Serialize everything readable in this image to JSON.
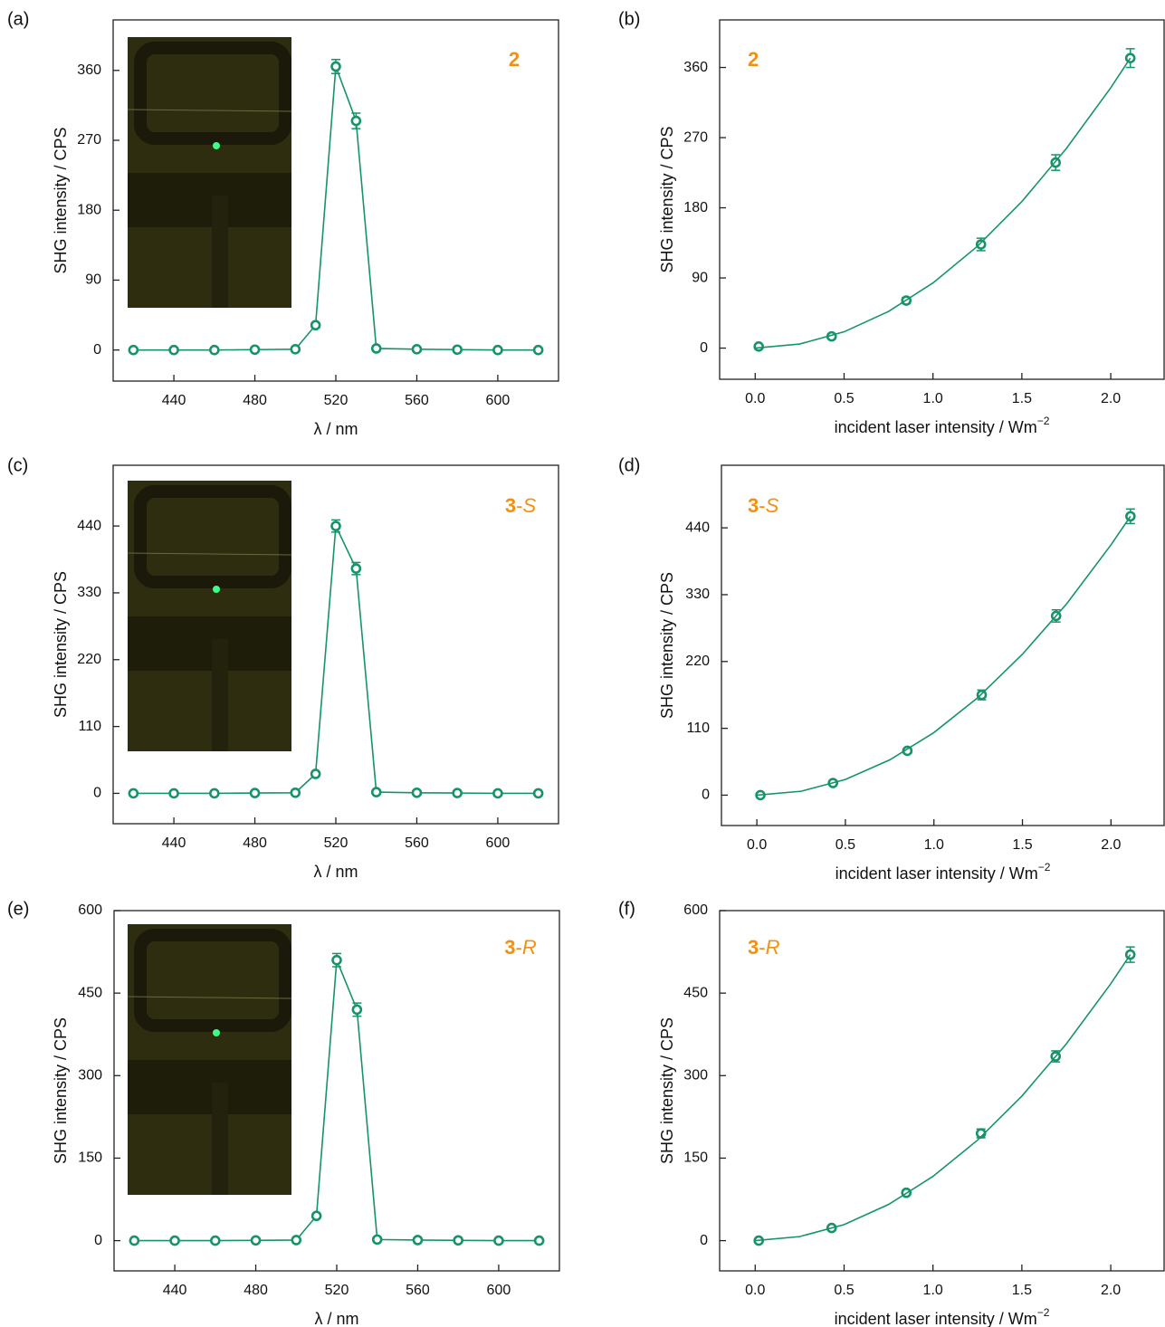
{
  "chart_data": [
    {
      "type": "line",
      "panel_label": "(a)",
      "compound_label": [
        "2"
      ],
      "x_label": [
        "λ / nm"
      ],
      "y_label": "SHG intensity / CPS",
      "xlim": [
        410,
        630
      ],
      "xticks": [
        440,
        480,
        520,
        560,
        600
      ],
      "ylim": [
        -40,
        425
      ],
      "yticks": [
        0,
        90,
        180,
        270,
        360
      ],
      "series": [
        {
          "color": "#17936b",
          "markers": true,
          "line": true,
          "x": [
            420,
            440,
            460,
            480,
            500,
            510,
            520,
            530,
            540,
            560,
            580,
            600,
            620
          ],
          "values": [
            0,
            0,
            0,
            0.5,
            1,
            32,
            365,
            295,
            2,
            1,
            0.5,
            0,
            0
          ],
          "errors": [
            2,
            2,
            2,
            2,
            2,
            3,
            9,
            10,
            2,
            2,
            2,
            2,
            2
          ]
        }
      ]
    },
    {
      "type": "line",
      "panel_label": "(b)",
      "compound_label": [
        "2"
      ],
      "x_label": [
        "incident laser intensity / Wm",
        "−2"
      ],
      "y_label": "SHG intensity / CPS",
      "xlim": [
        -0.2,
        2.3
      ],
      "xticks": [
        {
          "value": 0,
          "label": "0.0"
        },
        0.5,
        {
          "value": 1,
          "label": "1.0"
        },
        1.5,
        {
          "value": 2,
          "label": "2.0"
        }
      ],
      "ylim": [
        -40,
        421
      ],
      "yticks": [
        0,
        90,
        180,
        270,
        360
      ],
      "series": [
        {
          "color": "#17936b",
          "markers": true,
          "line": false,
          "x": [
            0.02,
            0.43,
            0.85,
            1.27,
            1.69,
            2.11
          ],
          "values": [
            2,
            15,
            61,
            133,
            238,
            372
          ],
          "errors": [
            2,
            3,
            4,
            8,
            10,
            12
          ]
        },
        {
          "color": "#17936b",
          "markers": false,
          "line": true,
          "x": [
            0,
            0.25,
            0.5,
            0.75,
            1,
            1.25,
            1.5,
            1.75,
            2,
            2.11
          ],
          "values": [
            0,
            5.2,
            20.9,
            47,
            83.6,
            130.6,
            188,
            256,
            334,
            372
          ]
        }
      ]
    },
    {
      "type": "line",
      "panel_label": "(c)",
      "compound_label": [
        "3",
        "-",
        "S"
      ],
      "x_label": [
        "λ / nm"
      ],
      "y_label": "SHG intensity / CPS",
      "xlim": [
        410,
        630
      ],
      "xticks": [
        440,
        480,
        520,
        560,
        600
      ],
      "ylim": [
        -50,
        540
      ],
      "yticks": [
        0,
        110,
        220,
        330,
        440
      ],
      "series": [
        {
          "color": "#17936b",
          "markers": true,
          "line": true,
          "x": [
            420,
            440,
            460,
            480,
            500,
            510,
            520,
            530,
            540,
            560,
            580,
            600,
            620
          ],
          "values": [
            0,
            0,
            0,
            0.5,
            1,
            32,
            440,
            370,
            2,
            1,
            0.5,
            0,
            0
          ],
          "errors": [
            2,
            2,
            2,
            2,
            2,
            3,
            10,
            10,
            2,
            2,
            2,
            2,
            2
          ]
        }
      ]
    },
    {
      "type": "line",
      "panel_label": "(d)",
      "compound_label": [
        "3",
        "-",
        "S"
      ],
      "x_label": [
        "incident laser intensity / Wm",
        "−2"
      ],
      "y_label": "SHG intensity / CPS",
      "xlim": [
        -0.2,
        2.3
      ],
      "xticks": [
        {
          "value": 0,
          "label": "0.0"
        },
        0.5,
        {
          "value": 1,
          "label": "1.0"
        },
        1.5,
        {
          "value": 2,
          "label": "2.0"
        }
      ],
      "ylim": [
        -50,
        543
      ],
      "yticks": [
        0,
        110,
        220,
        330,
        440
      ],
      "series": [
        {
          "color": "#17936b",
          "markers": true,
          "line": false,
          "x": [
            0.02,
            0.43,
            0.85,
            1.27,
            1.69,
            2.11
          ],
          "values": [
            0,
            20,
            73,
            165,
            295,
            459
          ],
          "errors": [
            2,
            3,
            4,
            8,
            10,
            12
          ]
        },
        {
          "color": "#17936b",
          "markers": false,
          "line": true,
          "x": [
            0,
            0.25,
            0.5,
            0.75,
            1,
            1.25,
            1.5,
            1.75,
            2,
            2.11
          ],
          "values": [
            0,
            6.4,
            25.8,
            58,
            103,
            161,
            232,
            315,
            412,
            459
          ]
        }
      ]
    },
    {
      "type": "line",
      "panel_label": "(e)",
      "compound_label": [
        "3",
        "-",
        "R"
      ],
      "x_label": [
        "λ / nm"
      ],
      "y_label": "SHG intensity / CPS",
      "xlim": [
        410,
        630
      ],
      "xticks": [
        440,
        480,
        520,
        560,
        600
      ],
      "ylim": [
        -55,
        600
      ],
      "yticks": [
        0,
        150,
        300,
        450,
        600
      ],
      "series": [
        {
          "color": "#17936b",
          "markers": true,
          "line": true,
          "x": [
            420,
            440,
            460,
            480,
            500,
            510,
            520,
            530,
            540,
            560,
            580,
            600,
            620
          ],
          "values": [
            0,
            0,
            0,
            0.5,
            1,
            45,
            510,
            420,
            2,
            1,
            0.5,
            0,
            0
          ],
          "errors": [
            2,
            2,
            2,
            2,
            2,
            3,
            12,
            12,
            2,
            2,
            2,
            2,
            2
          ]
        }
      ]
    },
    {
      "type": "line",
      "panel_label": "(f)",
      "compound_label": [
        "3",
        "-",
        "R"
      ],
      "x_label": [
        "incident laser intensity / Wm",
        "−2"
      ],
      "y_label": "SHG intensity / CPS",
      "xlim": [
        -0.2,
        2.3
      ],
      "xticks": [
        {
          "value": 0,
          "label": "0.0"
        },
        0.5,
        {
          "value": 1,
          "label": "1.0"
        },
        1.5,
        {
          "value": 2,
          "label": "2.0"
        }
      ],
      "ylim": [
        -55,
        600
      ],
      "yticks": [
        0,
        150,
        300,
        450,
        600
      ],
      "series": [
        {
          "color": "#17936b",
          "markers": true,
          "line": false,
          "x": [
            0.02,
            0.43,
            0.85,
            1.27,
            1.69,
            2.11
          ],
          "values": [
            0,
            23,
            87,
            195,
            335,
            520
          ],
          "errors": [
            2,
            3,
            4,
            8,
            10,
            14
          ]
        },
        {
          "color": "#17936b",
          "markers": false,
          "line": true,
          "x": [
            0,
            0.25,
            0.5,
            0.75,
            1,
            1.25,
            1.5,
            1.75,
            2,
            2.11
          ],
          "values": [
            0,
            7.3,
            29.2,
            65.7,
            116.8,
            182.5,
            262.8,
            357.7,
            467,
            520
          ]
        }
      ]
    }
  ]
}
